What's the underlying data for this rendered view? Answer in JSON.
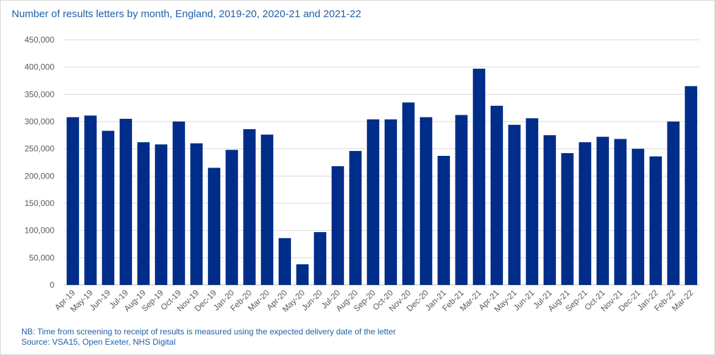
{
  "chart_data": {
    "type": "bar",
    "title": "Number of results letters by month, England, 2019-20, 2020-21 and 2021-22",
    "xlabel": "",
    "ylabel": "",
    "ylim": [
      0,
      450000
    ],
    "yticks": [
      0,
      50000,
      100000,
      150000,
      200000,
      250000,
      300000,
      350000,
      400000,
      450000
    ],
    "ytick_labels": [
      "0",
      "50,000",
      "100,000",
      "150,000",
      "200,000",
      "250,000",
      "300,000",
      "350,000",
      "400,000",
      "450,000"
    ],
    "grid": true,
    "legend": "none",
    "bar_color": "#002d8a",
    "categories": [
      "Apr-19",
      "May-19",
      "Jun-19",
      "Jul-19",
      "Aug-19",
      "Sep-19",
      "Oct-19",
      "Nov-19",
      "Dec-19",
      "Jan-20",
      "Feb-20",
      "Mar-20",
      "Apr-20",
      "May-20",
      "Jun-20",
      "Jul-20",
      "Aug-20",
      "Sep-20",
      "Oct-20",
      "Nov-20",
      "Dec-20",
      "Jan-21",
      "Feb-21",
      "Mar-21",
      "Apr-21",
      "May-21",
      "Jun-21",
      "Jul-21",
      "Aug-21",
      "Sep-21",
      "Oct-21",
      "Nov-21",
      "Dec-21",
      "Jan-22",
      "Feb-22",
      "Mar-22"
    ],
    "values": [
      308000,
      311000,
      283000,
      305000,
      262000,
      258000,
      300000,
      260000,
      215000,
      248000,
      286000,
      276000,
      86000,
      38000,
      97000,
      218000,
      246000,
      304000,
      304000,
      335000,
      308000,
      237000,
      312000,
      397000,
      329000,
      294000,
      306000,
      275000,
      242000,
      262000,
      272000,
      268000,
      250000,
      236000,
      300000,
      365000
    ]
  },
  "footnotes": {
    "note": "NB: Time from screening to receipt of results is measured using the expected delivery date of the letter",
    "source": "Source: VSA15,  Open Exeter,  NHS Digital"
  }
}
